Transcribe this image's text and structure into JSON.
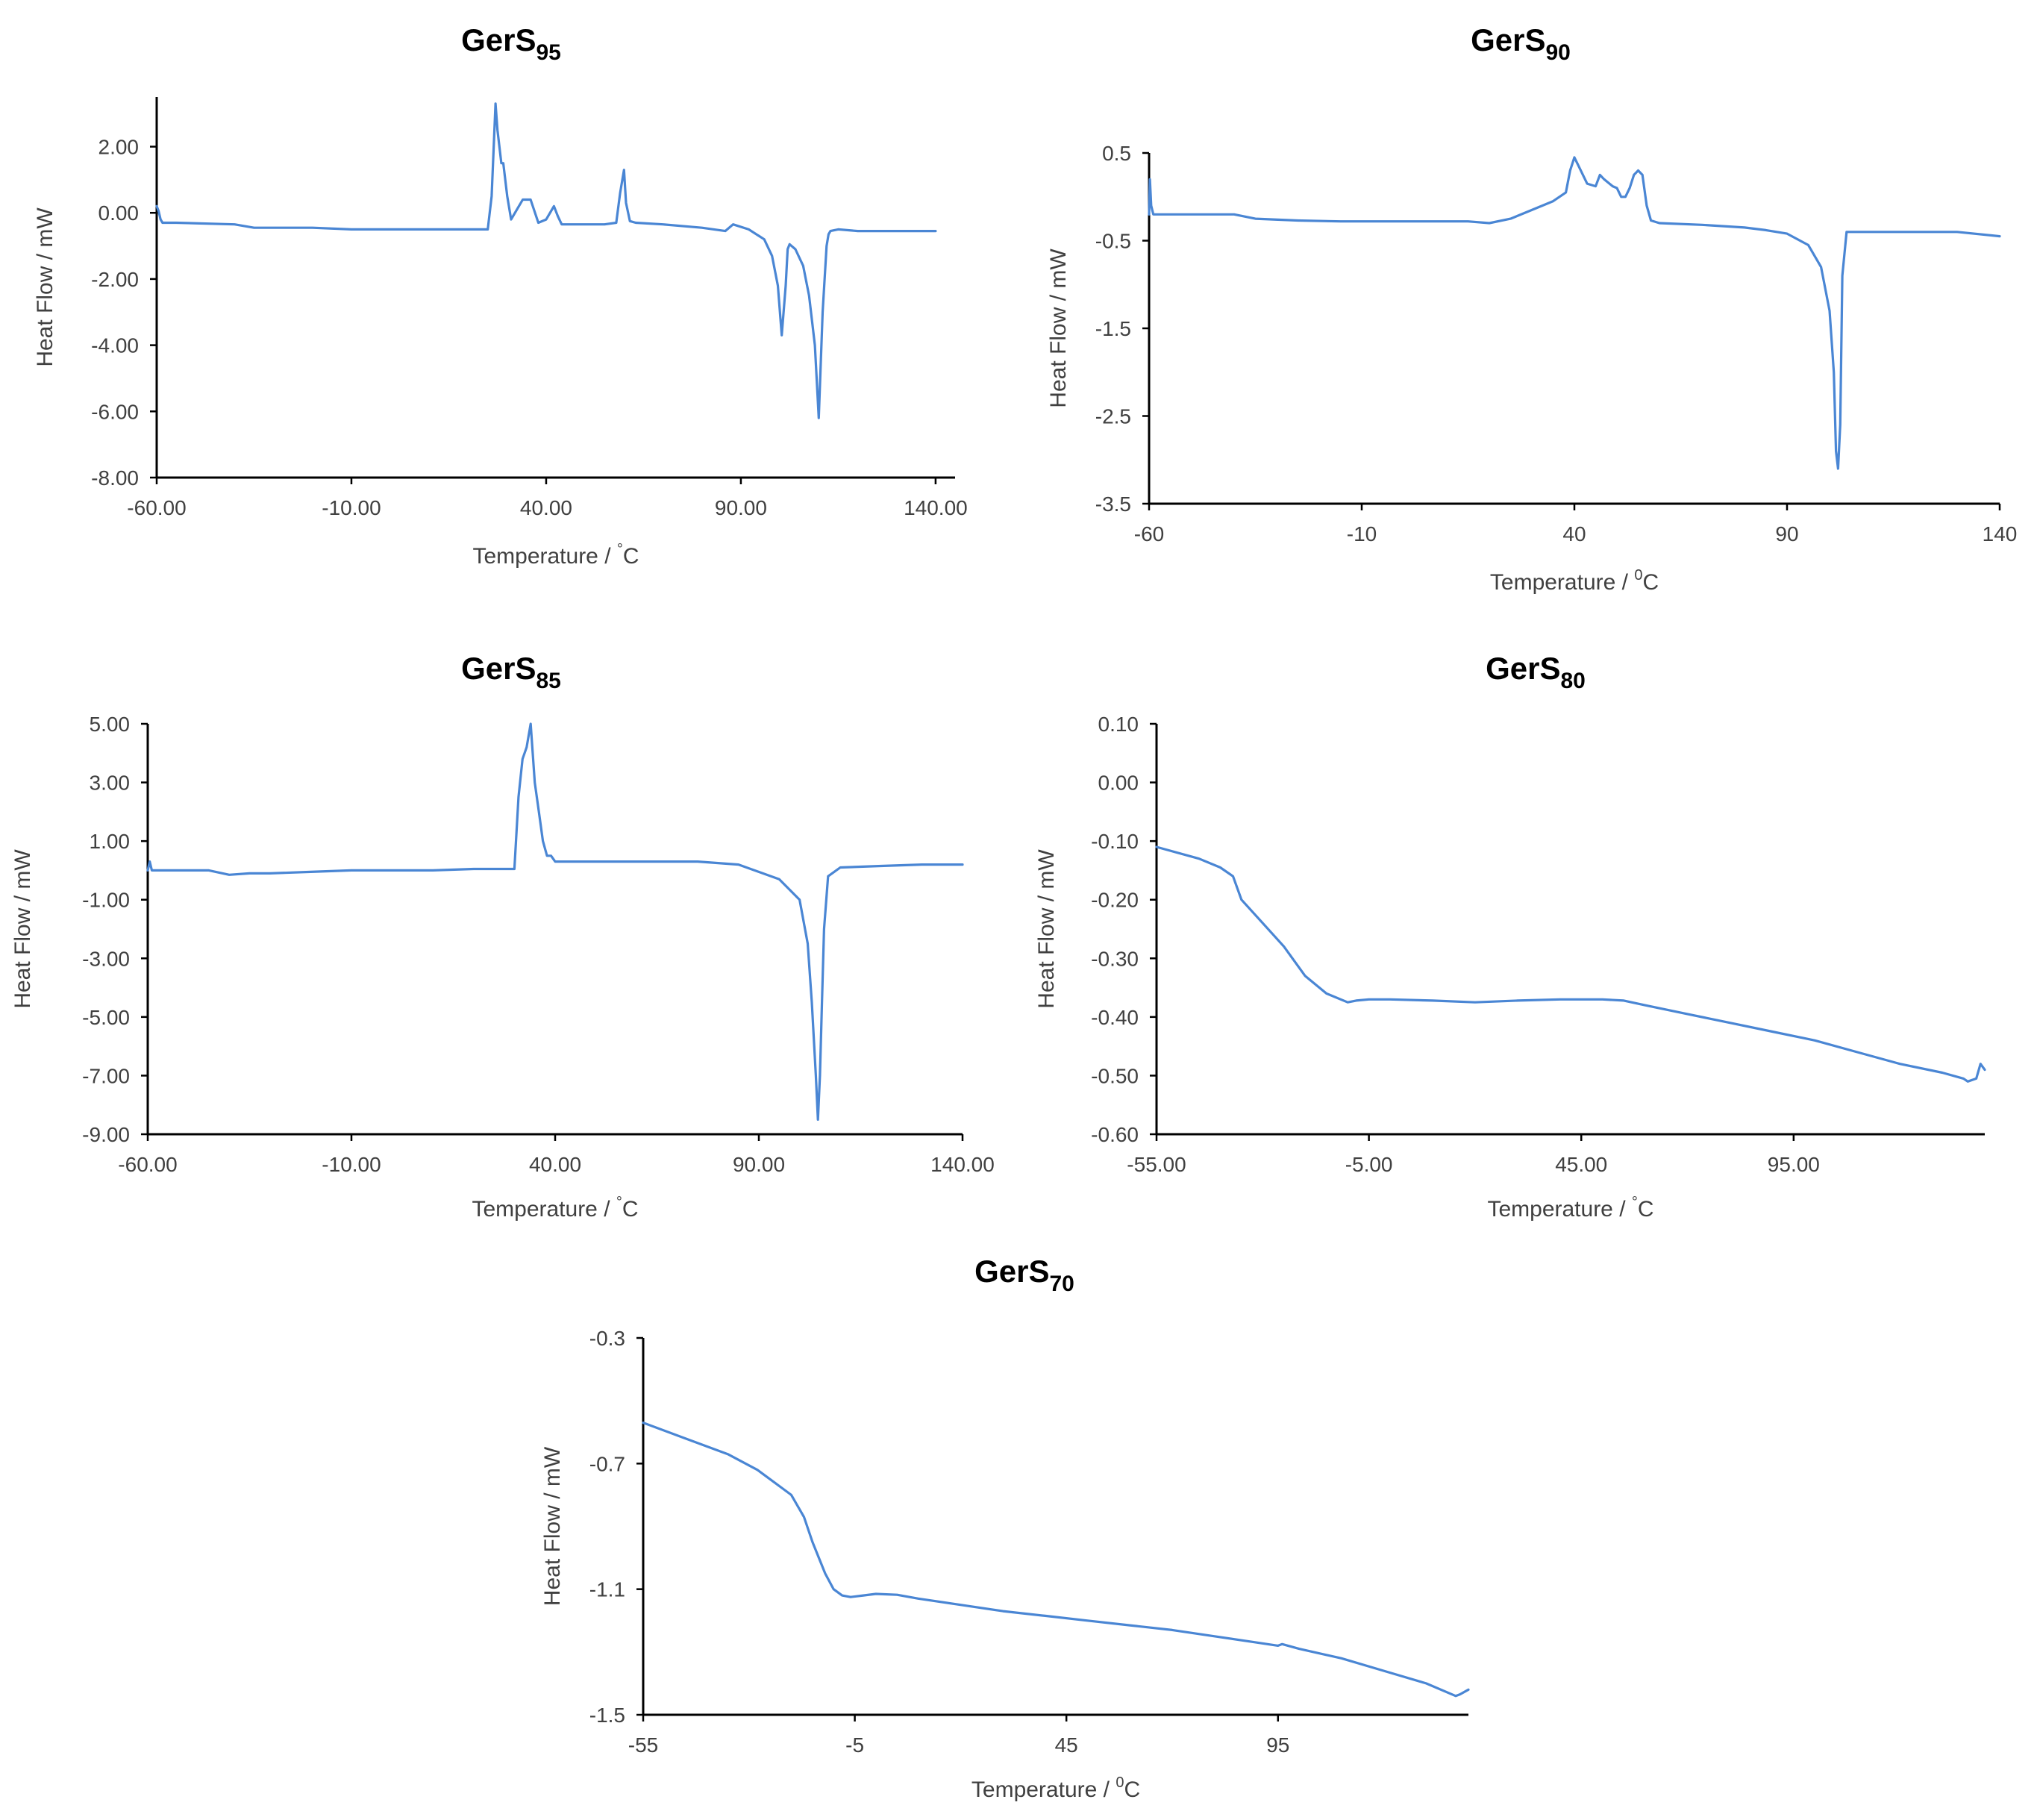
{
  "figure": {
    "line_color": "#4a86d4",
    "axis_color": "#000000",
    "text_color": "#404040"
  },
  "chart_data": [
    {
      "id": "gers95",
      "type": "line",
      "title": "GerS",
      "title_sub": "95",
      "xlabel": "Temperature  / ",
      "xlabel_unit_sup": "°",
      "xlabel_unit": "C",
      "ylabel": "Heat Flow / mW",
      "xlim": [
        -60,
        145
      ],
      "ylim": [
        -8,
        3.5
      ],
      "xticks": [
        -60,
        -10,
        40,
        90,
        140
      ],
      "xtick_labels": [
        "-60.00",
        "-10.00",
        "40.00",
        "90.00",
        "140.00"
      ],
      "yticks": [
        2,
        0,
        -2,
        -4,
        -6,
        -8
      ],
      "ytick_labels": [
        "2.00",
        "0.00",
        "-2.00",
        "-4.00",
        "-6.00",
        "-8.00"
      ],
      "series": [
        {
          "name": "GerS95",
          "x": [
            -60,
            -59.5,
            -59,
            -58.5,
            -55,
            -40,
            -35,
            -20,
            -10,
            0,
            10,
            20,
            25,
            26,
            27,
            27.5,
            28.5,
            29,
            30,
            31,
            32,
            34,
            36,
            38,
            40,
            42,
            43,
            44,
            45,
            50,
            55,
            58,
            59,
            60,
            60.5,
            61.5,
            63,
            70,
            80,
            86,
            88,
            92,
            96,
            98,
            99.5,
            100.5,
            101.5,
            102,
            102.5,
            103,
            104,
            106,
            107.5,
            109,
            110,
            111,
            112,
            112.5,
            113,
            115,
            120,
            140
          ],
          "y": [
            0.2,
            0.05,
            -0.2,
            -0.3,
            -0.3,
            -0.35,
            -0.45,
            -0.45,
            -0.5,
            -0.5,
            -0.5,
            -0.5,
            -0.5,
            0.5,
            3.3,
            2.5,
            1.5,
            1.5,
            0.5,
            -0.2,
            0.0,
            0.4,
            0.4,
            -0.3,
            -0.2,
            0.2,
            -0.1,
            -0.35,
            -0.35,
            -0.35,
            -0.35,
            -0.3,
            0.6,
            1.3,
            0.3,
            -0.25,
            -0.3,
            -0.35,
            -0.45,
            -0.55,
            -0.35,
            -0.5,
            -0.8,
            -1.3,
            -2.2,
            -3.7,
            -2.2,
            -1.1,
            -0.95,
            -1.0,
            -1.1,
            -1.6,
            -2.5,
            -4.0,
            -6.2,
            -3.0,
            -1.0,
            -0.65,
            -0.55,
            -0.5,
            -0.55,
            -0.55
          ]
        }
      ]
    },
    {
      "id": "gers90",
      "type": "line",
      "title": "GerS",
      "title_sub": "90",
      "xlabel": "Temperature  / ",
      "xlabel_unit_sup": "0",
      "xlabel_unit": "C",
      "ylabel": "Heat Flow / mW",
      "xlim": [
        -60,
        140
      ],
      "ylim": [
        -3.5,
        0.5
      ],
      "xticks": [
        -60,
        -10,
        40,
        90,
        140
      ],
      "xtick_labels": [
        "-60",
        "-10",
        "40",
        "90",
        "140"
      ],
      "yticks": [
        0.5,
        -0.5,
        -1.5,
        -2.5,
        -3.5
      ],
      "ytick_labels": [
        "0.5",
        "-0.5",
        "-1.5",
        "-2.5",
        "-3.5"
      ],
      "series": [
        {
          "name": "GerS90",
          "x": [
            -60,
            -59.8,
            -59.5,
            -59,
            -58,
            -50,
            -40,
            -35,
            -25,
            -15,
            -5,
            5,
            10,
            15,
            20,
            25,
            30,
            35,
            38,
            39,
            40,
            41,
            43,
            45,
            46,
            47,
            49,
            50,
            51,
            52,
            53,
            54,
            55,
            56,
            57,
            58,
            60,
            70,
            80,
            85,
            90,
            95,
            98,
            100,
            101,
            101.5,
            102,
            102.5,
            103,
            104,
            110,
            120,
            130,
            140
          ],
          "y": [
            -0.2,
            0.2,
            -0.1,
            -0.2,
            -0.2,
            -0.2,
            -0.2,
            -0.25,
            -0.27,
            -0.28,
            -0.28,
            -0.28,
            -0.28,
            -0.28,
            -0.3,
            -0.25,
            -0.15,
            -0.05,
            0.05,
            0.3,
            0.45,
            0.35,
            0.15,
            0.12,
            0.25,
            0.2,
            0.12,
            0.1,
            0.0,
            0.0,
            0.1,
            0.25,
            0.3,
            0.25,
            -0.1,
            -0.27,
            -0.3,
            -0.32,
            -0.35,
            -0.38,
            -0.42,
            -0.55,
            -0.8,
            -1.3,
            -2.0,
            -2.9,
            -3.1,
            -2.6,
            -0.9,
            -0.4,
            -0.4,
            -0.4,
            -0.4,
            -0.45
          ]
        }
      ]
    },
    {
      "id": "gers85",
      "type": "line",
      "title": "GerS",
      "title_sub": "85",
      "xlabel": "Temperature  / ",
      "xlabel_unit_sup": "°",
      "xlabel_unit": "C",
      "ylabel": "Heat Flow / mW",
      "xlim": [
        -60,
        140
      ],
      "ylim": [
        -9,
        5
      ],
      "xticks": [
        -60,
        -10,
        40,
        90,
        140
      ],
      "xtick_labels": [
        "-60.00",
        "-10.00",
        "40.00",
        "90.00",
        "140.00"
      ],
      "yticks": [
        5,
        3,
        1,
        -1,
        -3,
        -5,
        -7,
        -9
      ],
      "ytick_labels": [
        "5.00",
        "3.00",
        "1.00",
        "-1.00",
        "-3.00",
        "-5.00",
        "-7.00",
        "-9.00"
      ],
      "series": [
        {
          "name": "GerS85",
          "x": [
            -60,
            -59.5,
            -59,
            -58,
            -55,
            -45,
            -40,
            -35,
            -30,
            -20,
            -10,
            0,
            10,
            20,
            30,
            31,
            32,
            33,
            34,
            35,
            36,
            37,
            38,
            39,
            40,
            42,
            45,
            55,
            65,
            75,
            85,
            95,
            100,
            102,
            103,
            104,
            104.5,
            105,
            105.5,
            106,
            107,
            110,
            120,
            130,
            140
          ],
          "y": [
            0.0,
            0.3,
            0.0,
            0.0,
            0.0,
            0.0,
            -0.15,
            -0.1,
            -0.1,
            -0.05,
            0.0,
            0.0,
            0.0,
            0.05,
            0.05,
            2.5,
            3.8,
            4.2,
            5.0,
            3.0,
            2.0,
            1.0,
            0.5,
            0.5,
            0.3,
            0.3,
            0.3,
            0.3,
            0.3,
            0.3,
            0.2,
            -0.3,
            -1.0,
            -2.5,
            -4.5,
            -7.0,
            -8.5,
            -7.0,
            -4.5,
            -2.0,
            -0.2,
            0.1,
            0.15,
            0.2,
            0.2
          ]
        }
      ]
    },
    {
      "id": "gers80",
      "type": "line",
      "title": "GerS",
      "title_sub": "80",
      "xlabel": "Temperature  / ",
      "xlabel_unit_sup": "°",
      "xlabel_unit": "C",
      "ylabel": "Heat Flow / mW",
      "xlim": [
        -55,
        140
      ],
      "ylim": [
        -0.6,
        0.1
      ],
      "xticks": [
        -55,
        -5,
        45,
        95
      ],
      "xtick_labels": [
        "-55.00",
        "-5.00",
        "45.00",
        "95.00"
      ],
      "yticks": [
        0.1,
        0.0,
        -0.1,
        -0.2,
        -0.3,
        -0.4,
        -0.5,
        -0.6
      ],
      "ytick_labels": [
        "0.10",
        "0.00",
        "-0.10",
        "-0.20",
        "-0.30",
        "-0.40",
        "-0.50",
        "-0.60"
      ],
      "series": [
        {
          "name": "GerS80",
          "x": [
            -55,
            -45,
            -40,
            -37,
            -35,
            -30,
            -25,
            -20,
            -15,
            -10,
            -8,
            -5,
            0,
            10,
            20,
            30,
            40,
            50,
            55,
            60,
            70,
            80,
            90,
            100,
            110,
            120,
            130,
            135,
            136,
            138,
            139,
            140
          ],
          "y": [
            -0.11,
            -0.13,
            -0.145,
            -0.16,
            -0.2,
            -0.24,
            -0.28,
            -0.33,
            -0.36,
            -0.375,
            -0.372,
            -0.37,
            -0.37,
            -0.372,
            -0.375,
            -0.372,
            -0.37,
            -0.37,
            -0.372,
            -0.38,
            -0.395,
            -0.41,
            -0.425,
            -0.44,
            -0.46,
            -0.48,
            -0.495,
            -0.505,
            -0.51,
            -0.505,
            -0.48,
            -0.49
          ]
        }
      ]
    },
    {
      "id": "gers70",
      "type": "line",
      "title": "GerS",
      "title_sub": "70",
      "xlabel": "Temperature  / ",
      "xlabel_unit_sup": "0",
      "xlabel_unit": "C",
      "ylabel": "Heat Flow / mW",
      "xlim": [
        -55,
        140
      ],
      "ylim": [
        -1.5,
        -0.3
      ],
      "xticks": [
        -55,
        -5,
        45,
        95
      ],
      "xtick_labels": [
        "-55",
        "-5",
        "45",
        "95"
      ],
      "yticks": [
        -0.3,
        -0.7,
        -1.1,
        -1.5
      ],
      "ytick_labels": [
        "-0.3",
        "-0.7",
        "-1.1",
        "-1.5"
      ],
      "series": [
        {
          "name": "GerS70",
          "x": [
            -55,
            -45,
            -35,
            -28,
            -25,
            -22,
            -20,
            -17,
            -15,
            -12,
            -10,
            -8,
            -6,
            -3,
            0,
            5,
            10,
            20,
            30,
            40,
            50,
            60,
            70,
            80,
            90,
            95,
            96,
            100,
            110,
            120,
            130,
            137,
            138,
            140
          ],
          "y": [
            -0.57,
            -0.62,
            -0.67,
            -0.72,
            -0.75,
            -0.78,
            -0.8,
            -0.87,
            -0.95,
            -1.05,
            -1.1,
            -1.12,
            -1.125,
            -1.12,
            -1.115,
            -1.118,
            -1.13,
            -1.15,
            -1.17,
            -1.185,
            -1.2,
            -1.215,
            -1.23,
            -1.25,
            -1.27,
            -1.28,
            -1.275,
            -1.29,
            -1.32,
            -1.36,
            -1.4,
            -1.44,
            -1.435,
            -1.42
          ]
        }
      ]
    }
  ]
}
